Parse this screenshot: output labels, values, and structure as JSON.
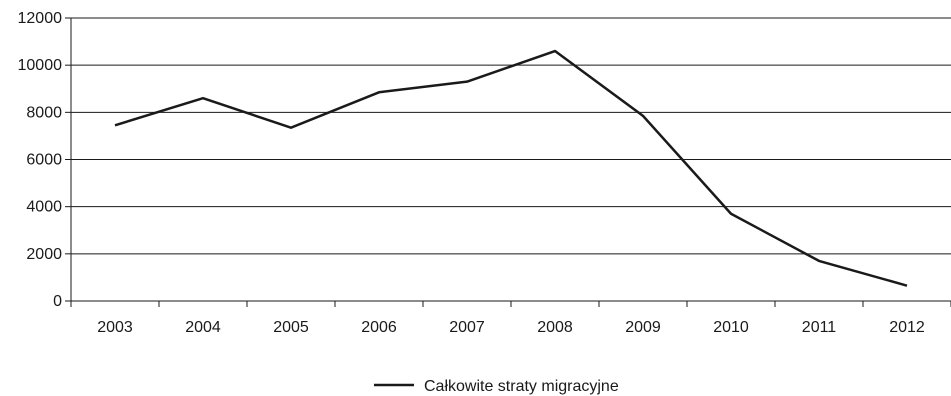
{
  "chart_data": {
    "type": "line",
    "title": "",
    "xlabel": "",
    "ylabel": "",
    "categories": [
      "2003",
      "2004",
      "2005",
      "2006",
      "2007",
      "2008",
      "2009",
      "2010",
      "2011",
      "2012"
    ],
    "series": [
      {
        "name": "Całkowite straty migracyjne",
        "values": [
          7450,
          8600,
          7350,
          8850,
          9300,
          10600,
          7850,
          3700,
          1700,
          650
        ],
        "color": "#1a1a1a"
      }
    ],
    "y_ticks": [
      "0",
      "2000",
      "4000",
      "6000",
      "8000",
      "10000",
      "12000"
    ],
    "ylim": [
      0,
      12000
    ],
    "grid": "horizontal",
    "legend_position": "bottom"
  }
}
